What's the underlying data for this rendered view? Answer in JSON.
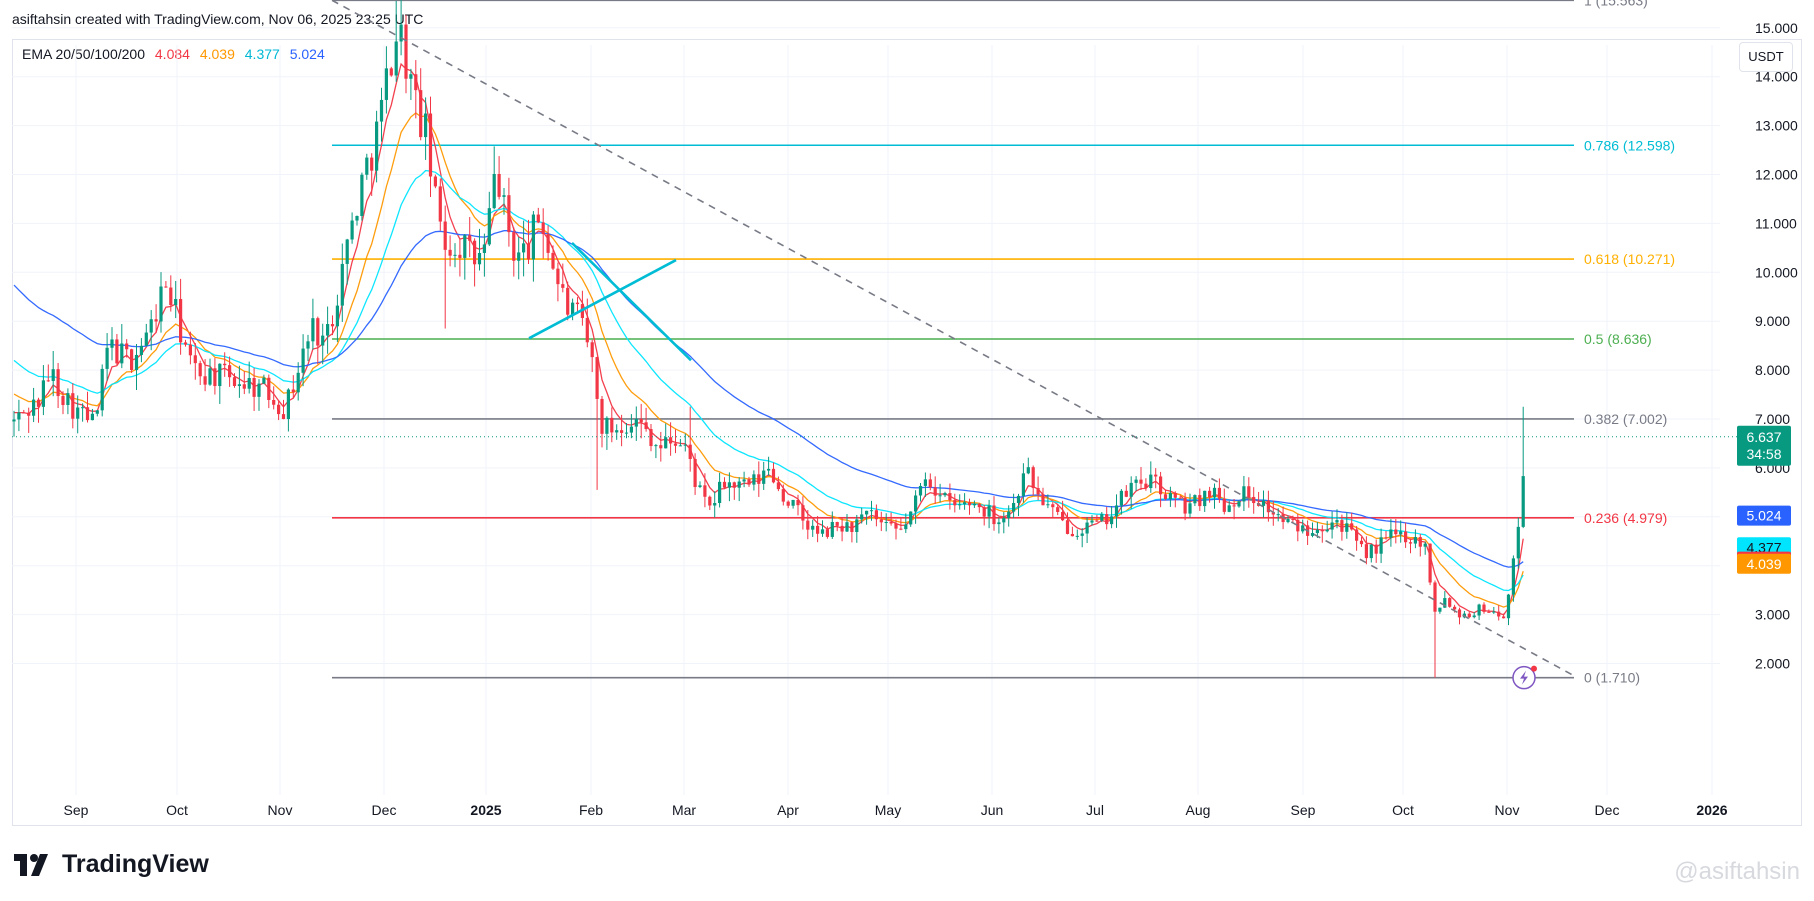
{
  "header": {
    "text": "asiftahsin created with TradingView.com, Nov 06, 2025 23:25 UTC"
  },
  "legend": {
    "name": "EMA 20/50/100/200",
    "values": [
      {
        "text": "4.084",
        "color": "#f23645"
      },
      {
        "text": "4.039",
        "color": "#ff9800"
      },
      {
        "text": "4.377",
        "color": "#00e5ff"
      },
      {
        "text": "5.024",
        "color": "#2962ff"
      }
    ]
  },
  "currency": "USDT",
  "brand": {
    "name": "TradingView",
    "icon": "tradingview-logo-icon"
  },
  "watermark": "@asiftahsin",
  "chart_data": {
    "type": "candlestick",
    "x_labels": [
      "Sep",
      "Oct",
      "Nov",
      "Dec",
      "2025",
      "Feb",
      "Mar",
      "Apr",
      "May",
      "Jun",
      "Jul",
      "Aug",
      "Sep",
      "Oct",
      "Nov",
      "Dec",
      "2026"
    ],
    "y_ticks": [
      2,
      3,
      4,
      5,
      6,
      7,
      8,
      9,
      10,
      11,
      12,
      13,
      14,
      15
    ],
    "y_tick_labels": [
      "2.000",
      "3.000",
      "4.000",
      "5.000",
      "6.000",
      "7.000",
      "8.000",
      "9.000",
      "10.000",
      "11.000",
      "12.000",
      "13.000",
      "14.000",
      "15.000"
    ],
    "ylim": [
      1.45,
      16.2
    ],
    "xlim": [
      0,
      1790
    ],
    "last_price": {
      "value": 6.637,
      "label": "6.637",
      "countdown": "34:58",
      "color": "#089981"
    },
    "price_labels": [
      {
        "label": "5.024",
        "color": "#2962ff",
        "text_color": "#ffffff",
        "value": 5.024
      },
      {
        "label": "4.377",
        "color": "#00e5ff",
        "text_color": "#131722",
        "value": 4.377
      },
      {
        "label": "4.084",
        "color": "#f23645",
        "text_color": "#ffffff",
        "value": 4.084
      },
      {
        "label": "4.039",
        "color": "#ff9800",
        "text_color": "#ffffff",
        "value": 4.039
      }
    ],
    "fib_levels": [
      {
        "ratio": 1,
        "label": "1 (15.563)",
        "value": 15.563,
        "color": "#787b86"
      },
      {
        "ratio": 0.786,
        "label": "0.786 (12.598)",
        "value": 12.598,
        "color": "#00bcd4"
      },
      {
        "ratio": 0.618,
        "label": "0.618 (10.271)",
        "value": 10.271,
        "color": "#ffb000"
      },
      {
        "ratio": 0.5,
        "label": "0.5 (8.636)",
        "value": 8.636,
        "color": "#4caf50"
      },
      {
        "ratio": 0.382,
        "label": "0.382 (7.002)",
        "value": 7.002,
        "color": "#787b86"
      },
      {
        "ratio": 0.236,
        "label": "0.236 (4.979)",
        "value": 4.979,
        "color": "#f23645"
      },
      {
        "ratio": 0,
        "label": "0 (1.710)",
        "value": 1.71,
        "color": "#787b86"
      }
    ],
    "colors": {
      "up": "#089981",
      "down": "#f23645",
      "grid": "#f0f3fa",
      "axis_text": "#131722"
    },
    "series": [
      {
        "name": "EMA 20",
        "color": "#f23645"
      },
      {
        "name": "EMA 50",
        "color": "#ff9800"
      },
      {
        "name": "EMA 100",
        "color": "#00e5ff"
      },
      {
        "name": "EMA 200",
        "color": "#2962ff"
      }
    ],
    "trendline": {
      "from": [
        15.563
      ],
      "to": [
        1.75
      ],
      "style": "dashed",
      "color": "#787b86"
    },
    "cross_lines": {
      "color": "#00bcd4"
    }
  }
}
